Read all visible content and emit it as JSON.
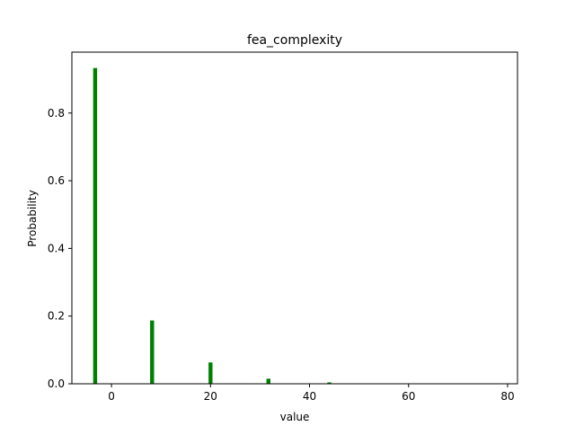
{
  "chart_data": {
    "type": "bar",
    "title": "fea_complexity",
    "xlabel": "value",
    "ylabel": "Probability",
    "xlim": [
      -8,
      82
    ],
    "ylim": [
      0,
      0.98
    ],
    "xticks": [
      0,
      20,
      40,
      60,
      80
    ],
    "yticks": [
      0.0,
      0.2,
      0.4,
      0.6,
      0.8
    ],
    "grid": false,
    "legend": "none",
    "bar_width": 0.8,
    "bar_color": "#008000",
    "x": [
      -3.3,
      8.2,
      20.0,
      31.7,
      44.0
    ],
    "values": [
      0.933,
      0.187,
      0.063,
      0.015,
      0.004
    ]
  }
}
